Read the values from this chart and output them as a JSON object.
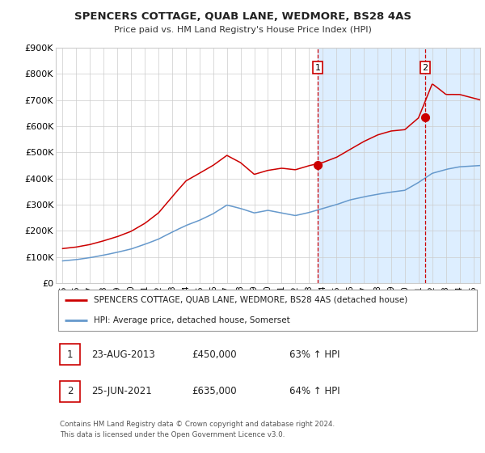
{
  "title": "SPENCERS COTTAGE, QUAB LANE, WEDMORE, BS28 4AS",
  "subtitle": "Price paid vs. HM Land Registry's House Price Index (HPI)",
  "legend_line1": "SPENCERS COTTAGE, QUAB LANE, WEDMORE, BS28 4AS (detached house)",
  "legend_line2": "HPI: Average price, detached house, Somerset",
  "footer": "Contains HM Land Registry data © Crown copyright and database right 2024.\nThis data is licensed under the Open Government Licence v3.0.",
  "table": [
    {
      "num": "1",
      "date": "23-AUG-2013",
      "price": "£450,000",
      "hpi": "63% ↑ HPI"
    },
    {
      "num": "2",
      "date": "25-JUN-2021",
      "price": "£635,000",
      "hpi": "64% ↑ HPI"
    }
  ],
  "sale1_x": 2013.64,
  "sale1_y": 450000,
  "sale2_x": 2021.48,
  "sale2_y": 635000,
  "shaded_start": 2013.64,
  "red_color": "#cc0000",
  "blue_color": "#6699cc",
  "shade_color": "#ddeeff",
  "dashed_color": "#cc0000",
  "ylim": [
    0,
    900000
  ],
  "xlim": [
    1994.5,
    2025.5
  ],
  "yticks": [
    0,
    100000,
    200000,
    300000,
    400000,
    500000,
    600000,
    700000,
    800000,
    900000
  ],
  "ytick_labels": [
    "£0",
    "£100K",
    "£200K",
    "£300K",
    "£400K",
    "£500K",
    "£600K",
    "£700K",
    "£800K",
    "£900K"
  ],
  "xtick_years": [
    1995,
    1996,
    1997,
    1998,
    1999,
    2000,
    2001,
    2002,
    2003,
    2004,
    2005,
    2006,
    2007,
    2008,
    2009,
    2010,
    2011,
    2012,
    2013,
    2014,
    2015,
    2016,
    2017,
    2018,
    2019,
    2020,
    2021,
    2022,
    2023,
    2024,
    2025
  ],
  "hpi_keypoints": [
    [
      1995,
      85000
    ],
    [
      1996,
      90000
    ],
    [
      1997,
      97000
    ],
    [
      1998,
      107000
    ],
    [
      1999,
      118000
    ],
    [
      2000,
      130000
    ],
    [
      2001,
      148000
    ],
    [
      2002,
      168000
    ],
    [
      2003,
      195000
    ],
    [
      2004,
      220000
    ],
    [
      2005,
      240000
    ],
    [
      2006,
      265000
    ],
    [
      2007,
      298000
    ],
    [
      2008,
      285000
    ],
    [
      2009,
      268000
    ],
    [
      2010,
      278000
    ],
    [
      2011,
      268000
    ],
    [
      2012,
      258000
    ],
    [
      2013,
      270000
    ],
    [
      2014,
      285000
    ],
    [
      2015,
      300000
    ],
    [
      2016,
      318000
    ],
    [
      2017,
      330000
    ],
    [
      2018,
      340000
    ],
    [
      2019,
      348000
    ],
    [
      2020,
      355000
    ],
    [
      2021,
      385000
    ],
    [
      2022,
      420000
    ],
    [
      2023,
      435000
    ],
    [
      2024,
      445000
    ],
    [
      2025.5,
      450000
    ]
  ],
  "prop_keypoints": [
    [
      1995,
      132000
    ],
    [
      1996,
      138000
    ],
    [
      1997,
      148000
    ],
    [
      1998,
      162000
    ],
    [
      1999,
      178000
    ],
    [
      2000,
      198000
    ],
    [
      2001,
      228000
    ],
    [
      2002,
      268000
    ],
    [
      2003,
      330000
    ],
    [
      2004,
      390000
    ],
    [
      2005,
      420000
    ],
    [
      2006,
      450000
    ],
    [
      2007,
      488000
    ],
    [
      2008,
      460000
    ],
    [
      2009,
      415000
    ],
    [
      2010,
      430000
    ],
    [
      2011,
      438000
    ],
    [
      2012,
      432000
    ],
    [
      2013,
      448000
    ],
    [
      2014,
      460000
    ],
    [
      2015,
      480000
    ],
    [
      2016,
      510000
    ],
    [
      2017,
      540000
    ],
    [
      2018,
      565000
    ],
    [
      2019,
      580000
    ],
    [
      2020,
      585000
    ],
    [
      2021,
      630000
    ],
    [
      2022,
      760000
    ],
    [
      2023,
      720000
    ],
    [
      2024,
      720000
    ],
    [
      2025.5,
      700000
    ]
  ]
}
